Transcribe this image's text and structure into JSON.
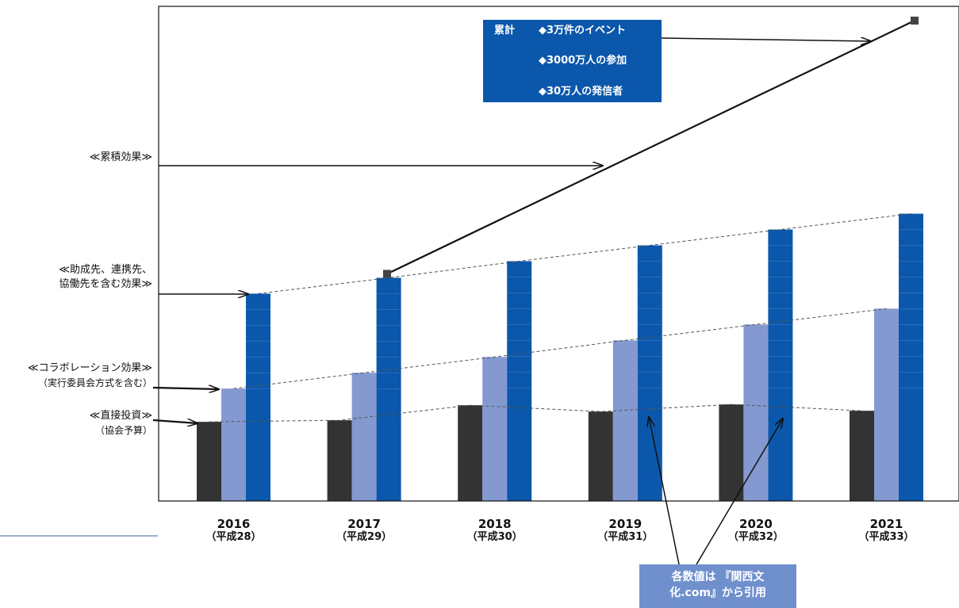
{
  "chart_data": {
    "type": "bar",
    "categories": [
      "2016",
      "2017",
      "2018",
      "2019",
      "2020",
      "2021"
    ],
    "category_sublabels": [
      "（平成28）",
      "（平成29）",
      "（平成30）",
      "（平成31）",
      "（平成32）",
      "（平成33）"
    ],
    "series": [
      {
        "name": "≪直接投資≫",
        "values": [
          100,
          102,
          121,
          113,
          122,
          114
        ],
        "color": "#333333"
      },
      {
        "name": "≪コラボレーション効果≫",
        "values": [
          142,
          162,
          182,
          203,
          223,
          243
        ],
        "color": "#8499cf"
      },
      {
        "name": "≪助成先、連携先、協働先を含む効果≫",
        "values": [
          262,
          282,
          303,
          323,
          343,
          363
        ],
        "color": "#0a57ab"
      }
    ],
    "cumulative_line": {
      "name": "≪累積効果≫",
      "x": [
        "2017",
        "2021"
      ],
      "values": [
        287,
        607
      ],
      "color": "#111111"
    },
    "ylim": [
      0,
      625
    ],
    "grid": false,
    "legend": "left",
    "title": "",
    "xlabel": "",
    "ylabel": ""
  },
  "labels": {
    "cumulative": "≪累積効果≫",
    "partner_line1": "≪助成先、連携先、",
    "partner_line2": "協働先を含む効果≫",
    "collab_line1": "≪コラボレーション効果≫",
    "collab_line2": "（実行委員会方式を含む）",
    "direct_line1": "≪直接投資≫",
    "direct_line2": "（協会予算）"
  },
  "summary": {
    "heading": "累計",
    "items": [
      "◆3万件のイベント",
      "◆3000万人の参加",
      "◆30万人の発信者"
    ]
  },
  "note": {
    "line1": "各数値は 『関西文",
    "line2": "化.com』から引用"
  }
}
